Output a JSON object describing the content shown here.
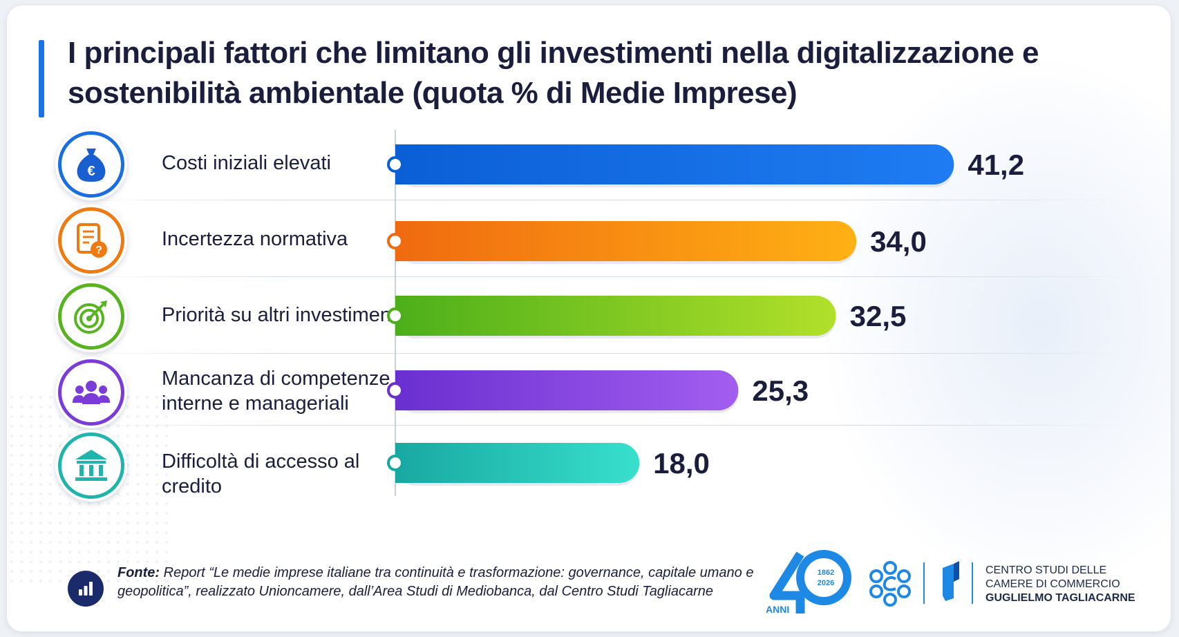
{
  "title": "I principali fattori che limitano gli investimenti nella digitalizzazione e sostenibilità ambientale (quota % di Medie Imprese)",
  "chart_data": {
    "type": "bar",
    "orientation": "horizontal",
    "title": "I principali fattori che limitano gli investimenti nella digitalizzazione e sostenibilità ambientale (quota % di Medie Imprese)",
    "categories": [
      "Costi iniziali elevati",
      "Incertezza normativa",
      "Priorità su altri investimenti",
      "Mancanza di competenze interne e manageriali",
      "Difficoltà di accesso al credito"
    ],
    "values": [
      41.2,
      34.0,
      32.5,
      25.3,
      18.0
    ],
    "value_labels": [
      "41,2",
      "34,0",
      "32,5",
      "25,3",
      "18,0"
    ],
    "xlim": [
      0,
      45
    ],
    "grid": false,
    "legend": "none",
    "bar_gradients": [
      [
        "#0b5fd6",
        "#1f7cf2"
      ],
      [
        "#f06a10",
        "#ffb114"
      ],
      [
        "#4caf1a",
        "#b2e02a"
      ],
      [
        "#6a2fd0",
        "#a35ef0"
      ],
      [
        "#18a8a2",
        "#38e0cc"
      ]
    ]
  },
  "rows": [
    {
      "label_line1": "Costi iniziali elevati",
      "label_line2": "",
      "icon": "money-bag-euro-icon",
      "color": "#1a6fe0"
    },
    {
      "label_line1": "Incertezza normativa",
      "label_line2": "",
      "icon": "document-question-icon",
      "color": "#f07a12"
    },
    {
      "label_line1": "Priorità su altri investimenti",
      "label_line2": "",
      "icon": "target-arrow-icon",
      "color": "#56b41e"
    },
    {
      "label_line1": "Mancanza di competenze",
      "label_line2": "interne e manageriali",
      "icon": "people-group-icon",
      "color": "#7a3bd8"
    },
    {
      "label_line1": "Difficoltà di accesso al credito",
      "label_line2": "",
      "icon": "bank-building-icon",
      "color": "#1fb5ad"
    }
  ],
  "footer": {
    "source_prefix": "Fonte:",
    "source_text": " Report “Le medie imprese italiane tra continuità e trasformazione: governance, capitale umano e geopolitica”, realizzato Unioncamere, dall’Area Studi di Mediobanca, dal Centro Studi Tagliacarne",
    "icon": "bar-chart-icon"
  },
  "logos": {
    "anniversary_years_1": "1862",
    "anniversary_years_2": "2026",
    "anniversary_word": "ANNI",
    "org_line1": "CENTRO STUDI DELLE",
    "org_line2": "CAMERE DI COMMERCIO",
    "org_line3": "GUGLIELMO TAGLIACARNE"
  }
}
